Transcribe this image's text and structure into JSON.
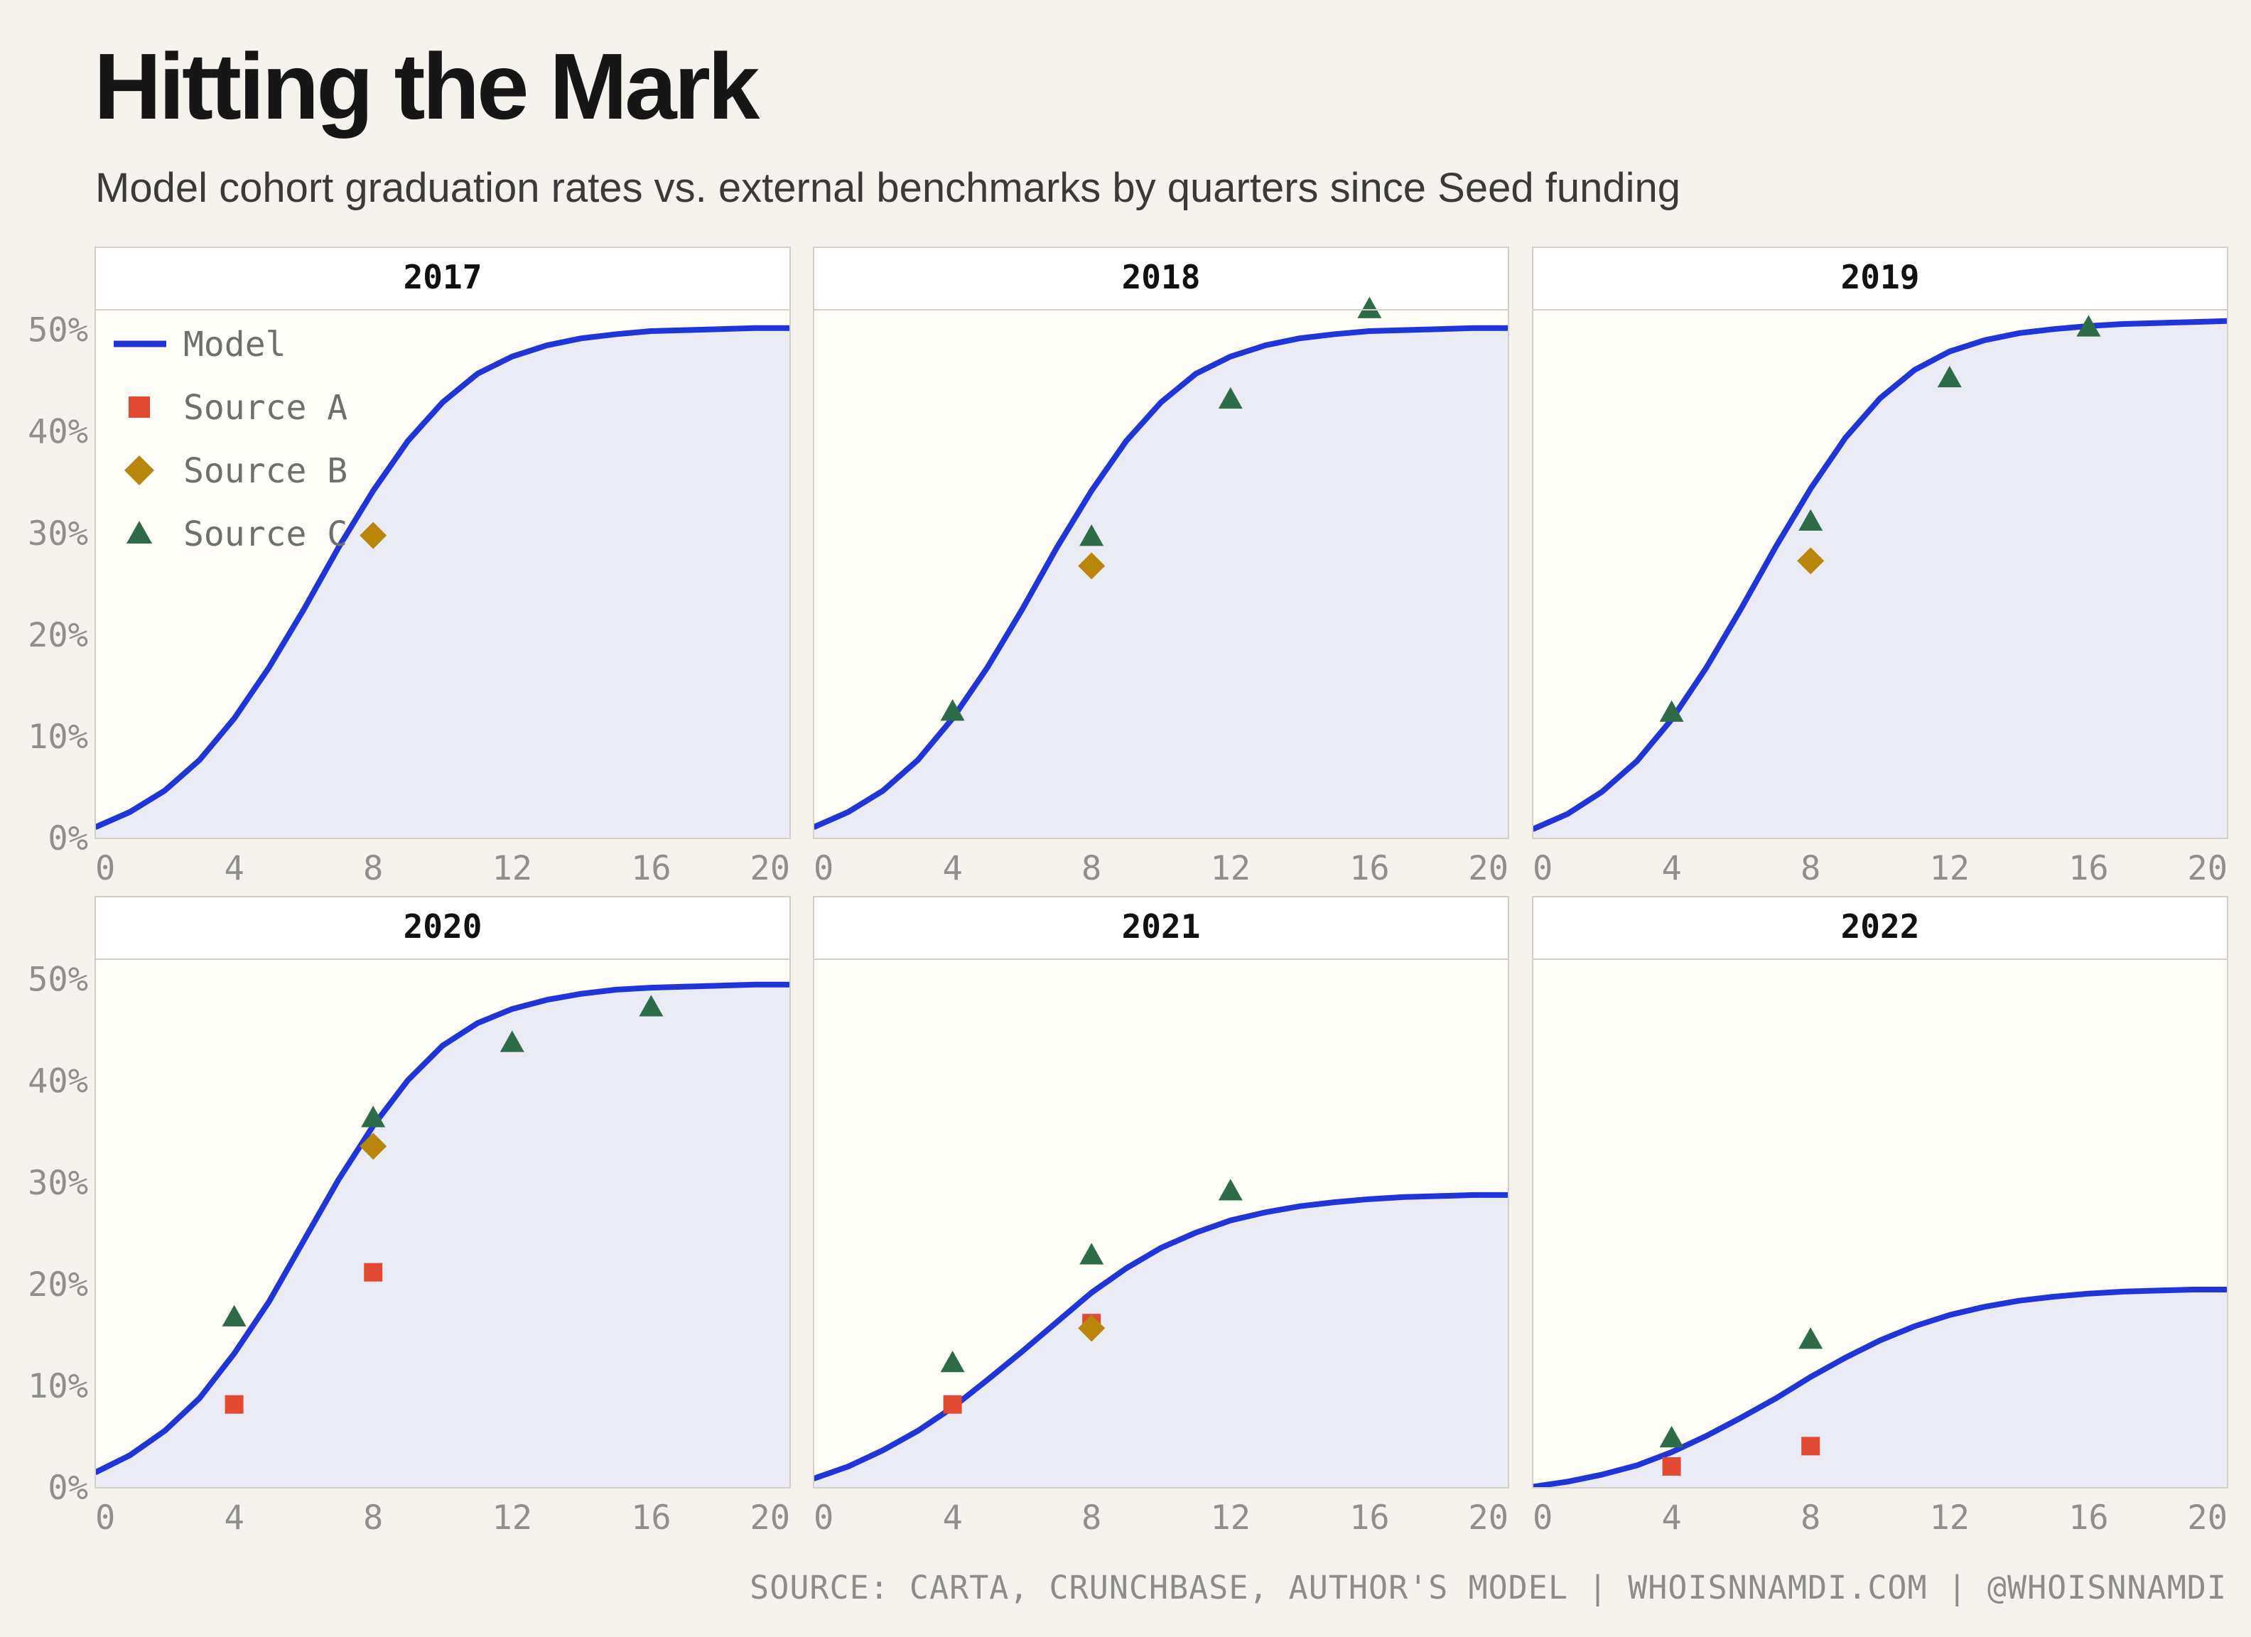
{
  "title": "Hitting the Mark",
  "subtitle": "Model cohort graduation rates vs. external benchmarks by quarters since Seed funding",
  "footer": "SOURCE: CARTA, CRUNCHBASE, AUTHOR'S MODEL | WHOISNNAMDI.COM | @WHOISNNAMDI",
  "colors": {
    "model": "#2035d8",
    "area": "#ebebf5",
    "panel_bg": "#fefdf8",
    "source_a": "#e24a33",
    "source_b": "#b8860b",
    "source_c": "#2e6b48"
  },
  "chart_data": {
    "type": "line",
    "layout": "facet 2x3",
    "xlim": [
      0,
      20
    ],
    "ylim": [
      0,
      52
    ],
    "x_ticks": [
      0,
      4,
      8,
      12,
      16,
      20
    ],
    "y_ticks": [
      0,
      10,
      20,
      30,
      40,
      50
    ],
    "y_tick_labels": [
      "0%",
      "10%",
      "20%",
      "30%",
      "40%",
      "50%"
    ],
    "x_tick_labels": [
      "0",
      "4",
      "8",
      "12",
      "16",
      "20"
    ],
    "legend": {
      "placement": "top-left of first panel",
      "entries": [
        {
          "label": "Model",
          "marker": "line",
          "color": "#2035d8"
        },
        {
          "label": "Source A",
          "marker": "square",
          "color": "#e24a33"
        },
        {
          "label": "Source B",
          "marker": "diamond",
          "color": "#b8860b"
        },
        {
          "label": "Source C",
          "marker": "triangle",
          "color": "#2e6b48"
        }
      ]
    },
    "panels": [
      {
        "label": "2017",
        "model": [
          [
            0,
            1.1
          ],
          [
            1,
            2.6
          ],
          [
            2,
            4.7
          ],
          [
            3,
            7.7
          ],
          [
            4,
            11.8
          ],
          [
            5,
            16.8
          ],
          [
            6,
            22.5
          ],
          [
            7,
            28.6
          ],
          [
            8,
            34.2
          ],
          [
            9,
            39.1
          ],
          [
            10,
            42.9
          ],
          [
            11,
            45.7
          ],
          [
            12,
            47.4
          ],
          [
            13,
            48.5
          ],
          [
            14,
            49.2
          ],
          [
            15,
            49.6
          ],
          [
            16,
            49.9
          ],
          [
            17,
            50.0
          ],
          [
            18,
            50.1
          ],
          [
            19,
            50.2
          ],
          [
            20,
            50.2
          ]
        ],
        "source_a": [],
        "source_b": [
          [
            8,
            29.8
          ]
        ],
        "source_c": []
      },
      {
        "label": "2018",
        "model": [
          [
            0,
            1.1
          ],
          [
            1,
            2.6
          ],
          [
            2,
            4.7
          ],
          [
            3,
            7.7
          ],
          [
            4,
            11.8
          ],
          [
            5,
            16.8
          ],
          [
            6,
            22.5
          ],
          [
            7,
            28.6
          ],
          [
            8,
            34.2
          ],
          [
            9,
            39.1
          ],
          [
            10,
            42.9
          ],
          [
            11,
            45.7
          ],
          [
            12,
            47.4
          ],
          [
            13,
            48.5
          ],
          [
            14,
            49.2
          ],
          [
            15,
            49.6
          ],
          [
            16,
            49.9
          ],
          [
            17,
            50.0
          ],
          [
            18,
            50.1
          ],
          [
            19,
            50.2
          ],
          [
            20,
            50.2
          ]
        ],
        "source_a": [],
        "source_b": [
          [
            8,
            26.8
          ]
        ],
        "source_c": [
          [
            4,
            12.5
          ],
          [
            8,
            29.7
          ],
          [
            12,
            43.2
          ],
          [
            16,
            52.1
          ]
        ]
      },
      {
        "label": "2019",
        "model": [
          [
            0,
            0.9
          ],
          [
            1,
            2.4
          ],
          [
            2,
            4.6
          ],
          [
            3,
            7.6
          ],
          [
            4,
            11.7
          ],
          [
            5,
            16.8
          ],
          [
            6,
            22.6
          ],
          [
            7,
            28.7
          ],
          [
            8,
            34.4
          ],
          [
            9,
            39.4
          ],
          [
            10,
            43.3
          ],
          [
            11,
            46.1
          ],
          [
            12,
            47.9
          ],
          [
            13,
            49.0
          ],
          [
            14,
            49.7
          ],
          [
            15,
            50.1
          ],
          [
            16,
            50.4
          ],
          [
            17,
            50.6
          ],
          [
            18,
            50.7
          ],
          [
            19,
            50.8
          ],
          [
            20,
            50.9
          ]
        ],
        "source_a": [],
        "source_b": [
          [
            8,
            27.3
          ]
        ],
        "source_c": [
          [
            4,
            12.4
          ],
          [
            8,
            31.2
          ],
          [
            12,
            45.3
          ],
          [
            16,
            50.3
          ]
        ]
      },
      {
        "label": "2020",
        "model": [
          [
            0,
            1.5
          ],
          [
            1,
            3.2
          ],
          [
            2,
            5.6
          ],
          [
            3,
            8.8
          ],
          [
            4,
            13.2
          ],
          [
            5,
            18.3
          ],
          [
            6,
            24.3
          ],
          [
            7,
            30.3
          ],
          [
            8,
            35.6
          ],
          [
            9,
            40.1
          ],
          [
            10,
            43.5
          ],
          [
            11,
            45.7
          ],
          [
            12,
            47.1
          ],
          [
            13,
            48.0
          ],
          [
            14,
            48.6
          ],
          [
            15,
            49.0
          ],
          [
            16,
            49.2
          ],
          [
            17,
            49.3
          ],
          [
            18,
            49.4
          ],
          [
            19,
            49.5
          ],
          [
            20,
            49.5
          ]
        ],
        "source_a": [
          [
            4,
            8.2
          ],
          [
            8,
            21.2
          ]
        ],
        "source_b": [
          [
            8,
            33.6
          ]
        ],
        "source_c": [
          [
            4,
            16.8
          ],
          [
            8,
            36.4
          ],
          [
            12,
            43.8
          ],
          [
            16,
            47.3
          ]
        ]
      },
      {
        "label": "2021",
        "model": [
          [
            0,
            0.9
          ],
          [
            1,
            2.1
          ],
          [
            2,
            3.7
          ],
          [
            3,
            5.6
          ],
          [
            4,
            7.9
          ],
          [
            5,
            10.6
          ],
          [
            6,
            13.4
          ],
          [
            7,
            16.3
          ],
          [
            8,
            19.2
          ],
          [
            9,
            21.6
          ],
          [
            10,
            23.6
          ],
          [
            11,
            25.1
          ],
          [
            12,
            26.3
          ],
          [
            13,
            27.1
          ],
          [
            14,
            27.7
          ],
          [
            15,
            28.1
          ],
          [
            16,
            28.4
          ],
          [
            17,
            28.6
          ],
          [
            18,
            28.7
          ],
          [
            19,
            28.8
          ],
          [
            20,
            28.8
          ]
        ],
        "source_a": [
          [
            4,
            8.2
          ],
          [
            8,
            16.2
          ]
        ],
        "source_b": [
          [
            8,
            15.7
          ]
        ],
        "source_c": [
          [
            4,
            12.3
          ],
          [
            8,
            22.9
          ],
          [
            12,
            29.2
          ]
        ]
      },
      {
        "label": "2022",
        "model": [
          [
            0,
            0.1
          ],
          [
            1,
            0.6
          ],
          [
            2,
            1.3
          ],
          [
            3,
            2.2
          ],
          [
            4,
            3.5
          ],
          [
            5,
            5.1
          ],
          [
            6,
            6.9
          ],
          [
            7,
            8.8
          ],
          [
            8,
            10.9
          ],
          [
            9,
            12.8
          ],
          [
            10,
            14.5
          ],
          [
            11,
            15.9
          ],
          [
            12,
            17.0
          ],
          [
            13,
            17.8
          ],
          [
            14,
            18.4
          ],
          [
            15,
            18.8
          ],
          [
            16,
            19.1
          ],
          [
            17,
            19.3
          ],
          [
            18,
            19.4
          ],
          [
            19,
            19.5
          ],
          [
            20,
            19.5
          ]
        ],
        "source_a": [
          [
            4,
            2.1
          ],
          [
            8,
            4.1
          ]
        ],
        "source_b": [],
        "source_c": [
          [
            4,
            4.9
          ],
          [
            8,
            14.6
          ]
        ]
      }
    ]
  }
}
